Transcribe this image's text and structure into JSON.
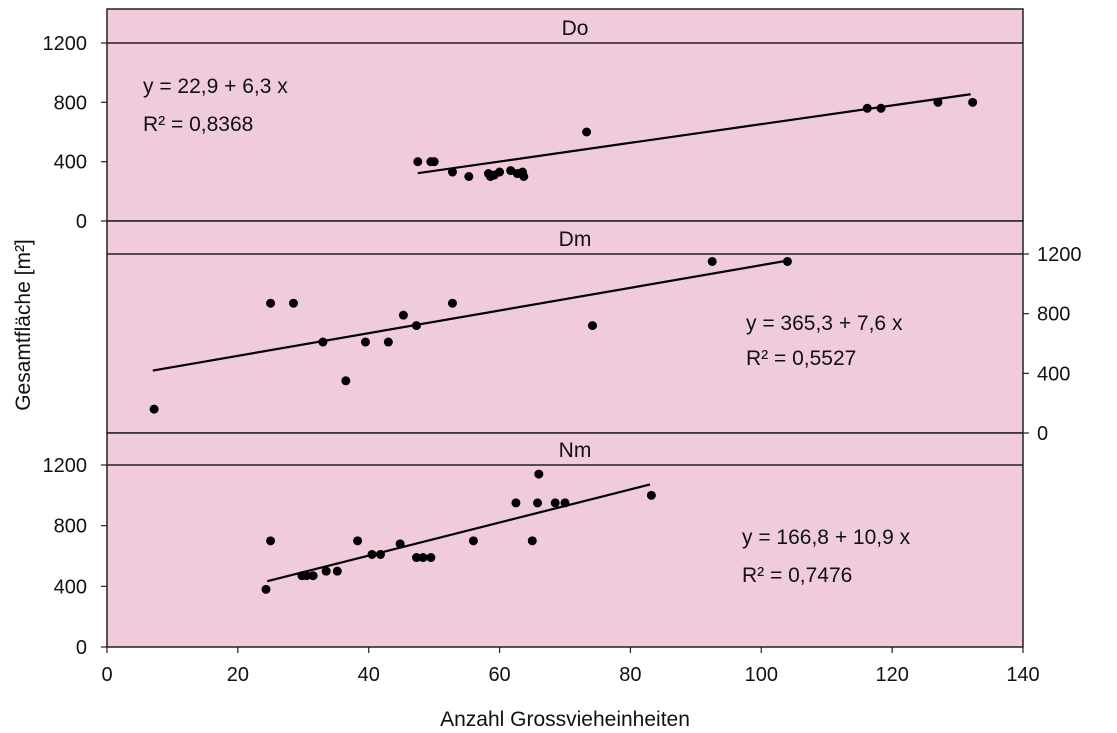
{
  "chart_data": {
    "type": "scatter",
    "xlabel": "Anzahl Grossvieheinheiten",
    "ylabel": "Gesamtfläche [m²]",
    "xlim": [
      0,
      140
    ],
    "xticks": [
      0,
      20,
      40,
      60,
      80,
      100,
      120,
      140
    ],
    "ylim": [
      0,
      1200
    ],
    "yticks": [
      0,
      400,
      800,
      1200
    ],
    "grid": false,
    "colors": {
      "background": "#f0cbdc",
      "marker": "#000000",
      "line": "#000000"
    },
    "panels": [
      {
        "title": "Do",
        "ytick_side": "left",
        "equation": "y = 22,9 + 6,3 x",
        "r2": "R² = 0,8368",
        "fit": {
          "intercept": 22.9,
          "slope": 6.3,
          "x_range": [
            47.5,
            132
          ]
        },
        "x": [
          47.5,
          49.5,
          50.0,
          52.8,
          55.3,
          58.3,
          58.6,
          59.2,
          60.0,
          61.7,
          62.7,
          63.5,
          63.7,
          73.3,
          116.2,
          118.3,
          127.0,
          132.3
        ],
        "y": [
          400,
          400,
          400,
          330,
          300,
          320,
          300,
          310,
          330,
          340,
          320,
          330,
          300,
          600,
          760,
          760,
          800,
          800
        ]
      },
      {
        "title": "Dm",
        "ytick_side": "right",
        "equation": "y = 365,3 + 7,6 x",
        "r2": "R² = 0,5527",
        "fit": {
          "intercept": 365.3,
          "slope": 7.6,
          "x_range": [
            7,
            104
          ]
        },
        "x": [
          7.2,
          25.0,
          28.5,
          33.0,
          36.5,
          39.5,
          43.0,
          45.3,
          47.3,
          52.8,
          74.2,
          92.5,
          104.0
        ],
        "y": [
          160,
          870,
          870,
          610,
          350,
          610,
          610,
          790,
          720,
          870,
          720,
          1150,
          1150
        ]
      },
      {
        "title": "Nm",
        "ytick_side": "left",
        "equation": "y = 166,8 + 10,9 x",
        "r2": "R² = 0,7476",
        "fit": {
          "intercept": 166.8,
          "slope": 10.9,
          "x_range": [
            24.5,
            83
          ]
        },
        "x": [
          24.3,
          25.0,
          29.8,
          30.5,
          31.5,
          33.5,
          35.2,
          38.3,
          40.5,
          41.8,
          44.8,
          47.3,
          48.3,
          49.5,
          56.0,
          62.5,
          65.0,
          65.8,
          66.0,
          68.5,
          70.0,
          83.2
        ],
        "y": [
          380,
          700,
          470,
          470,
          470,
          500,
          500,
          700,
          610,
          610,
          680,
          590,
          590,
          590,
          700,
          950,
          700,
          950,
          1140,
          950,
          950,
          1000
        ]
      }
    ]
  }
}
